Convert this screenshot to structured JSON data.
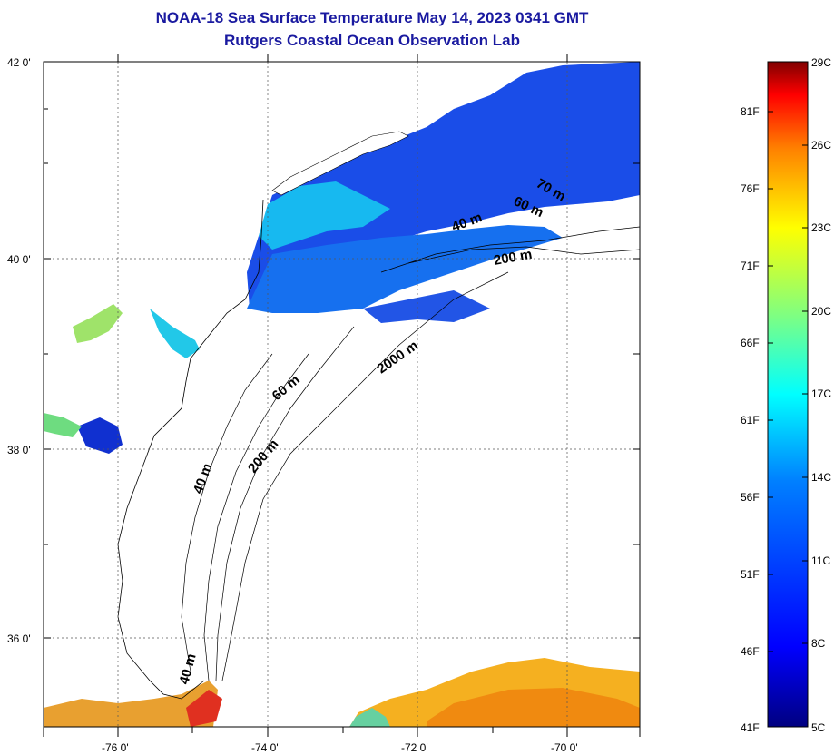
{
  "title": "NOAA-18 Sea Surface Temperature May 14, 2023 0341 GMT",
  "subtitle": "Rutgers Coastal Ocean Observation Lab",
  "map": {
    "lat_labels": [
      "42 0'",
      "40 0'",
      "38 0'",
      "36 0'"
    ],
    "lon_labels": [
      "-76 0'",
      "-74 0'",
      "-72 0'",
      "-70 0'"
    ],
    "lat_range": [
      35,
      42
    ],
    "lon_range": [
      -77,
      -69
    ],
    "grid": true,
    "depth_labels": [
      "70 m",
      "60 m",
      "40 m",
      "200 m",
      "2000 m",
      "60 m",
      "200 m",
      "40 m",
      "40 m"
    ]
  },
  "colorbar": {
    "celsius_labels": [
      "29C",
      "26C",
      "23C",
      "20C",
      "17C",
      "14C",
      "11C",
      "8C",
      "5C"
    ],
    "fahrenheit_labels": [
      "81F",
      "76F",
      "71F",
      "66F",
      "61F",
      "56F",
      "51F",
      "46F",
      "41F"
    ],
    "range_c": [
      5,
      29
    ],
    "colors": [
      "#000080",
      "#0000ff",
      "#0080ff",
      "#00ffff",
      "#80ff80",
      "#ffff00",
      "#ff8000",
      "#ff0000",
      "#800000"
    ]
  }
}
